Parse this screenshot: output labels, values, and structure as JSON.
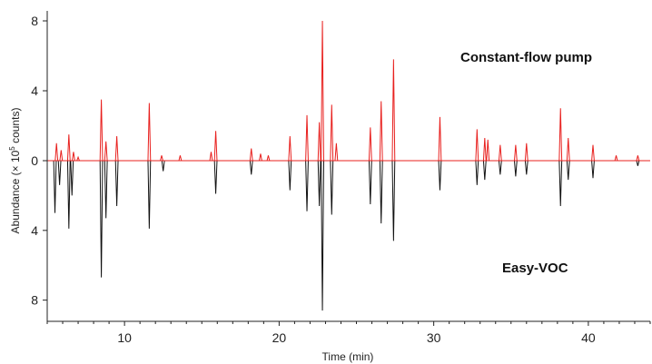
{
  "chart_data": {
    "type": "line",
    "xlabel": "Time (min)",
    "ylabel_prefix": "Abundance (× 10",
    "ylabel_exp": "5",
    "ylabel_suffix": " counts)",
    "xlim": [
      5,
      44
    ],
    "ylim_top": [
      0,
      8
    ],
    "ylim_bottom": [
      0,
      8.8
    ],
    "x_ticks": [
      10,
      20,
      30,
      40
    ],
    "y_ticks_top": [
      0,
      4,
      8
    ],
    "y_ticks_bottom": [
      4,
      8
    ],
    "grid": false,
    "annotations": [
      {
        "text": "Constant-flow pump"
      },
      {
        "text": "Easy-VOC"
      }
    ],
    "series": [
      {
        "color": "#e8201e",
        "direction": "up",
        "peaks": [
          [
            5.6,
            1.0
          ],
          [
            5.9,
            0.6
          ],
          [
            6.4,
            1.5
          ],
          [
            6.7,
            0.5
          ],
          [
            7.0,
            0.2
          ],
          [
            8.5,
            3.5
          ],
          [
            8.8,
            1.1
          ],
          [
            9.5,
            1.4
          ],
          [
            11.6,
            3.3
          ],
          [
            12.4,
            0.3
          ],
          [
            13.6,
            0.3
          ],
          [
            15.6,
            0.5
          ],
          [
            15.9,
            1.7
          ],
          [
            18.2,
            0.7
          ],
          [
            18.8,
            0.4
          ],
          [
            19.3,
            0.3
          ],
          [
            20.7,
            1.4
          ],
          [
            21.8,
            2.6
          ],
          [
            22.6,
            2.2
          ],
          [
            22.8,
            8.0
          ],
          [
            23.4,
            3.2
          ],
          [
            23.7,
            1.0
          ],
          [
            25.9,
            1.9
          ],
          [
            26.6,
            3.4
          ],
          [
            27.4,
            5.8
          ],
          [
            30.4,
            2.5
          ],
          [
            32.8,
            1.8
          ],
          [
            33.3,
            1.3
          ],
          [
            33.5,
            1.2
          ],
          [
            34.3,
            0.9
          ],
          [
            35.3,
            0.9
          ],
          [
            36.0,
            1.0
          ],
          [
            38.2,
            3.0
          ],
          [
            38.7,
            1.3
          ],
          [
            40.3,
            0.9
          ],
          [
            41.8,
            0.3
          ],
          [
            43.2,
            0.3
          ]
        ]
      },
      {
        "color": "#111111",
        "direction": "down",
        "peaks": [
          [
            5.5,
            3.0
          ],
          [
            5.8,
            1.4
          ],
          [
            6.4,
            3.9
          ],
          [
            6.6,
            2.0
          ],
          [
            8.5,
            6.7
          ],
          [
            8.8,
            3.3
          ],
          [
            9.5,
            2.6
          ],
          [
            11.6,
            3.9
          ],
          [
            12.5,
            0.6
          ],
          [
            15.9,
            1.9
          ],
          [
            18.2,
            0.8
          ],
          [
            20.7,
            1.7
          ],
          [
            21.8,
            2.9
          ],
          [
            22.6,
            2.6
          ],
          [
            22.8,
            8.6
          ],
          [
            23.4,
            3.1
          ],
          [
            25.9,
            2.5
          ],
          [
            26.6,
            3.6
          ],
          [
            27.4,
            4.6
          ],
          [
            30.4,
            1.7
          ],
          [
            32.8,
            1.4
          ],
          [
            33.3,
            1.1
          ],
          [
            34.3,
            0.8
          ],
          [
            35.3,
            0.9
          ],
          [
            36.0,
            0.8
          ],
          [
            38.2,
            2.6
          ],
          [
            38.7,
            1.1
          ],
          [
            40.3,
            1.0
          ],
          [
            43.2,
            0.3
          ]
        ]
      }
    ]
  }
}
